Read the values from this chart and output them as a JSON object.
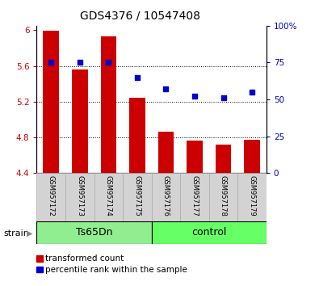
{
  "title": "GDS4376 / 10547408",
  "samples": [
    "GSM957172",
    "GSM957173",
    "GSM957174",
    "GSM957175",
    "GSM957176",
    "GSM957177",
    "GSM957178",
    "GSM957179"
  ],
  "bar_values": [
    5.99,
    5.56,
    5.93,
    5.24,
    4.86,
    4.76,
    4.72,
    4.77
  ],
  "percentile_vals": [
    75,
    75,
    75,
    65,
    57,
    52,
    51,
    55
  ],
  "ylim_left": [
    4.4,
    6.05
  ],
  "ylim_right": [
    0,
    100
  ],
  "yticks_left": [
    4.4,
    4.8,
    5.2,
    5.6,
    6.0
  ],
  "ytick_labels_left": [
    "4.4",
    "4.8",
    "5.2",
    "5.6",
    "6"
  ],
  "yticks_right": [
    0,
    25,
    50,
    75,
    100
  ],
  "ytick_labels_right": [
    "0",
    "25",
    "50",
    "75",
    "100%"
  ],
  "bar_color": "#cc0000",
  "scatter_color": "#0000cc",
  "bar_bottom": 4.4,
  "group1_label": "Ts65Dn",
  "group2_label": "control",
  "strain_label": "strain",
  "legend1": "transformed count",
  "legend2": "percentile rank within the sample",
  "group1_color": "#90ee90",
  "group2_color": "#66ff66",
  "title_fontsize": 10,
  "tick_fontsize": 7.5,
  "sample_fontsize": 6,
  "group_fontsize": 9,
  "legend_fontsize": 7.5
}
